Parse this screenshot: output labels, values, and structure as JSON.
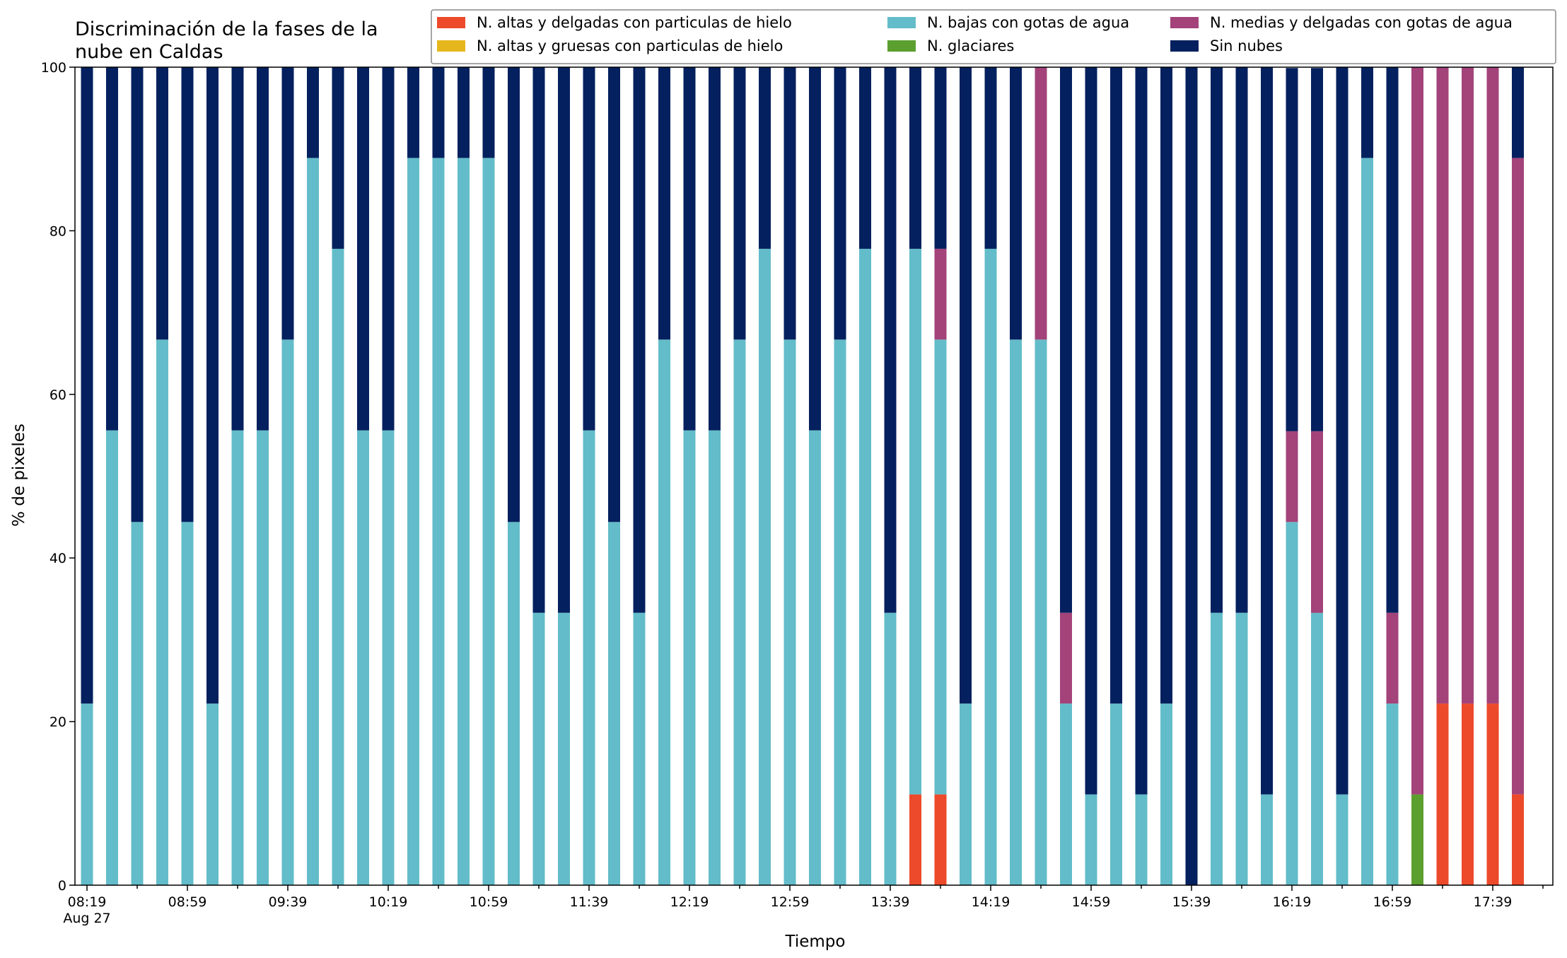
{
  "chart_data": {
    "type": "bar",
    "stacked": true,
    "title": [
      "Discriminación de la fases de la",
      "nube en Caldas"
    ],
    "xlabel": "Tiempo",
    "ylabel": "% de pixeles",
    "ylim": [
      0,
      100
    ],
    "yticks": [
      0,
      20,
      40,
      60,
      80,
      100
    ],
    "grid": false,
    "legend_position": "top-right",
    "x_tick_labels": [
      "08:19",
      "08:59",
      "09:39",
      "10:19",
      "10:59",
      "11:39",
      "12:19",
      "12:59",
      "13:39",
      "14:19",
      "14:59",
      "15:39",
      "16:19",
      "16:59",
      "17:39"
    ],
    "x_tick_sublabel": "Aug 27",
    "categories": [
      "08:19",
      "08:29",
      "08:39",
      "08:49",
      "08:59",
      "09:09",
      "09:19",
      "09:29",
      "09:39",
      "09:49",
      "09:59",
      "10:09",
      "10:19",
      "10:29",
      "10:39",
      "10:49",
      "10:59",
      "11:09",
      "11:19",
      "11:29",
      "11:39",
      "11:49",
      "11:59",
      "12:09",
      "12:19",
      "12:29",
      "12:39",
      "12:49",
      "12:59",
      "13:09",
      "13:19",
      "13:29",
      "13:39",
      "13:49",
      "13:59",
      "14:09",
      "14:19",
      "14:29",
      "14:39",
      "14:49",
      "14:59",
      "15:09",
      "15:19",
      "15:29",
      "15:39",
      "15:49",
      "15:59",
      "16:09",
      "16:19",
      "16:29",
      "16:39",
      "16:49",
      "16:59",
      "17:09",
      "17:19",
      "17:29",
      "17:39",
      "17:49"
    ],
    "series": [
      {
        "name": "N. altas y delgadas con particulas de hielo",
        "color": "#ec4a2a",
        "values": [
          0,
          0,
          0,
          0,
          0,
          0,
          0,
          0,
          0,
          0,
          0,
          0,
          0,
          0,
          0,
          0,
          0,
          0,
          0,
          0,
          0,
          0,
          0,
          0,
          0,
          0,
          0,
          0,
          0,
          0,
          0,
          0,
          0,
          11.1,
          11.1,
          0,
          0,
          0,
          0,
          0,
          0,
          0,
          0,
          0,
          0,
          0,
          0,
          0,
          0,
          0,
          0,
          0,
          0,
          0,
          22.2,
          22.2,
          22.2,
          11.1
        ]
      },
      {
        "name": "N. altas y gruesas con particulas de hielo",
        "color": "#e6b71d",
        "values": [
          0,
          0,
          0,
          0,
          0,
          0,
          0,
          0,
          0,
          0,
          0,
          0,
          0,
          0,
          0,
          0,
          0,
          0,
          0,
          0,
          0,
          0,
          0,
          0,
          0,
          0,
          0,
          0,
          0,
          0,
          0,
          0,
          0,
          0,
          0,
          0,
          0,
          0,
          0,
          0,
          0,
          0,
          0,
          0,
          0,
          0,
          0,
          0,
          0,
          0,
          0,
          0,
          0,
          0,
          0,
          0,
          0,
          0
        ]
      },
      {
        "name": "N. glaciares",
        "color": "#5b9f2f",
        "values": [
          0,
          0,
          0,
          0,
          0,
          0,
          0,
          0,
          0,
          0,
          0,
          0,
          0,
          0,
          0,
          0,
          0,
          0,
          0,
          0,
          0,
          0,
          0,
          0,
          0,
          0,
          0,
          0,
          0,
          0,
          0,
          0,
          0,
          0,
          0,
          0,
          0,
          0,
          0,
          0,
          0,
          0,
          0,
          0,
          0,
          0,
          0,
          0,
          0,
          0,
          0,
          0,
          0,
          11.1,
          0,
          0,
          0,
          0
        ]
      },
      {
        "name": "N. bajas con gotas de agua",
        "color": "#63bcc9",
        "values": [
          22.2,
          55.6,
          44.4,
          66.7,
          44.4,
          22.2,
          55.6,
          55.6,
          66.7,
          88.9,
          77.8,
          55.6,
          55.6,
          88.9,
          88.9,
          88.9,
          88.9,
          44.4,
          33.3,
          33.3,
          55.6,
          44.4,
          33.3,
          66.7,
          55.6,
          55.6,
          66.7,
          77.8,
          66.7,
          55.6,
          66.7,
          77.8,
          33.3,
          66.7,
          55.6,
          22.2,
          77.8,
          66.7,
          66.7,
          22.2,
          11.1,
          22.2,
          11.1,
          22.2,
          0,
          33.3,
          33.3,
          11.1,
          44.4,
          33.3,
          11.1,
          88.9,
          22.2,
          0,
          0,
          0,
          0,
          0
        ]
      },
      {
        "name": "N. medias y delgadas con gotas de agua",
        "color": "#a3437a",
        "values": [
          0,
          0,
          0,
          0,
          0,
          0,
          0,
          0,
          0,
          0,
          0,
          0,
          0,
          0,
          0,
          0,
          0,
          0,
          0,
          0,
          0,
          0,
          0,
          0,
          0,
          0,
          0,
          0,
          0,
          0,
          0,
          0,
          0,
          0,
          11.1,
          0,
          0,
          0,
          33.3,
          11.1,
          0,
          0,
          0,
          0,
          0,
          0,
          0,
          0,
          11.1,
          22.2,
          0,
          0,
          11.1,
          88.9,
          77.8,
          77.8,
          77.8,
          77.8
        ]
      },
      {
        "name": "Sin nubes",
        "color": "#04205e",
        "values": [
          77.8,
          44.4,
          55.6,
          33.3,
          55.6,
          77.8,
          44.4,
          44.4,
          33.3,
          11.1,
          22.2,
          44.4,
          44.4,
          11.1,
          11.1,
          11.1,
          11.1,
          55.6,
          66.7,
          66.7,
          44.4,
          55.6,
          66.7,
          33.3,
          44.4,
          44.4,
          33.3,
          22.2,
          33.3,
          44.4,
          33.3,
          22.2,
          66.7,
          22.2,
          22.2,
          77.8,
          22.2,
          33.3,
          0,
          66.7,
          88.9,
          77.8,
          88.9,
          77.8,
          100,
          66.7,
          66.7,
          88.9,
          44.4,
          44.4,
          88.9,
          11.1,
          66.7,
          0,
          0,
          0,
          0,
          11.1
        ]
      }
    ]
  }
}
